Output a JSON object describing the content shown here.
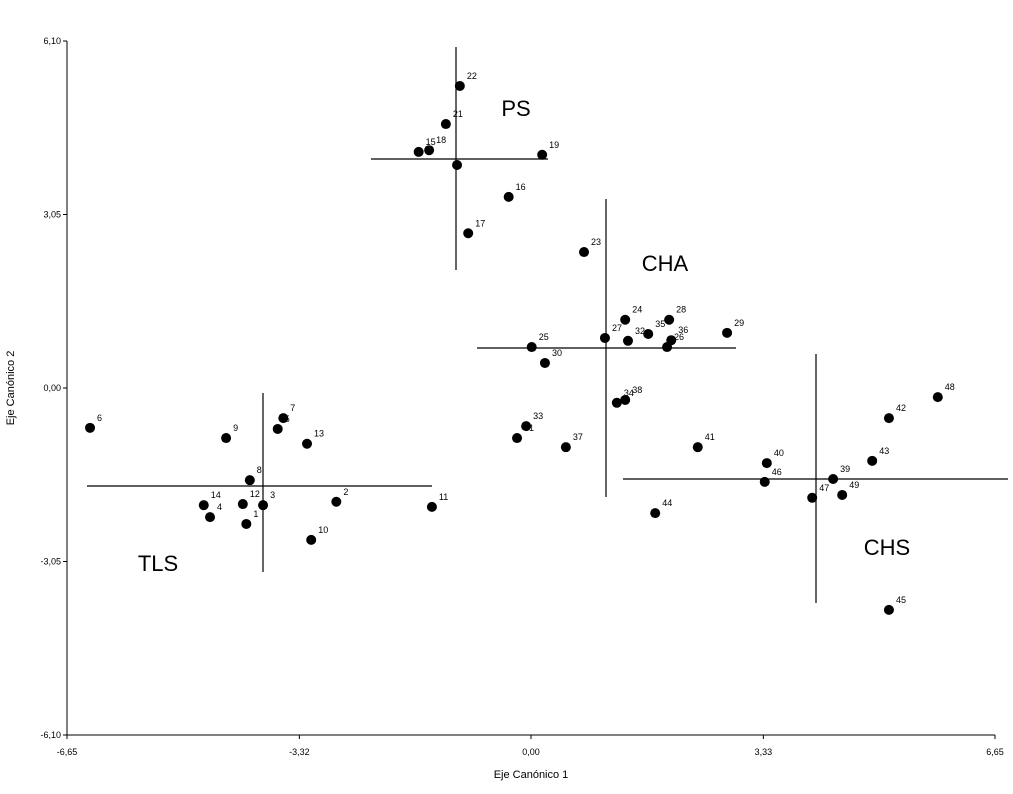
{
  "chart_data": {
    "type": "scatter",
    "x_label": "Eje Canónico 1",
    "y_label": "Eje Canónico 2",
    "xlim": [
      -6.65,
      6.65
    ],
    "ylim": [
      -6.1,
      6.1
    ],
    "xticks": [
      {
        "value": -6.65,
        "label": "-6,65"
      },
      {
        "value": -3.32,
        "label": "-3,32"
      },
      {
        "value": 0,
        "label": "0,00"
      },
      {
        "value": 3.33,
        "label": "3,33"
      },
      {
        "value": 6.65,
        "label": "6,65"
      }
    ],
    "yticks": [
      {
        "value": -6.1,
        "label": "-6,10"
      },
      {
        "value": -3.05,
        "label": "-3,05"
      },
      {
        "value": 0,
        "label": "0,00"
      },
      {
        "value": 3.05,
        "label": "3,05"
      },
      {
        "value": 6.1,
        "label": "6,10"
      }
    ],
    "color": "#000000",
    "annotations": [
      "PS",
      "CHA",
      "CHS",
      "TLS"
    ],
    "point_labels": [
      "22",
      "21",
      "18",
      "15",
      null,
      "19",
      "16",
      "17",
      "23",
      "24",
      "28",
      "27",
      "35",
      "36",
      "32",
      "26",
      "29",
      "25",
      "30",
      "34",
      "38",
      "33",
      "31",
      "37",
      "41",
      "44",
      "40",
      "46",
      "39",
      "47",
      "49",
      "43",
      "42",
      "48",
      "45",
      "6",
      "9",
      "7",
      "5",
      "13",
      "8",
      "14",
      "4",
      "12",
      "3",
      "1",
      "2",
      "10",
      "11"
    ],
    "x": [
      -1.02,
      -1.22,
      -1.46,
      -1.61,
      -1.06,
      0.16,
      -0.32,
      -0.9,
      0.76,
      1.35,
      1.98,
      1.06,
      1.68,
      2.01,
      1.39,
      1.95,
      2.81,
      0.01,
      0.2,
      1.23,
      1.35,
      -0.07,
      -0.2,
      0.5,
      2.39,
      1.78,
      3.38,
      3.35,
      4.33,
      4.03,
      4.46,
      4.89,
      5.13,
      5.83,
      5.13,
      -6.32,
      -4.37,
      -3.55,
      -3.63,
      -3.21,
      -4.03,
      -4.69,
      -4.6,
      -4.13,
      -3.84,
      -4.08,
      -2.79,
      -3.15,
      -1.42
    ],
    "y": [
      5.31,
      4.64,
      4.18,
      4.15,
      3.92,
      4.1,
      3.36,
      2.72,
      2.39,
      1.2,
      1.2,
      0.88,
      0.95,
      0.84,
      0.83,
      0.72,
      0.97,
      0.72,
      0.44,
      -0.26,
      -0.21,
      -0.67,
      -0.88,
      -1.04,
      -1.04,
      -2.2,
      -1.32,
      -1.65,
      -1.6,
      -1.93,
      -1.88,
      -1.28,
      -0.53,
      -0.16,
      -3.9,
      -0.7,
      -0.88,
      -0.53,
      -0.72,
      -0.98,
      -1.62,
      -2.06,
      -2.27,
      -2.04,
      -2.06,
      -2.39,
      -2.0,
      -2.67,
      -2.09
    ]
  }
}
